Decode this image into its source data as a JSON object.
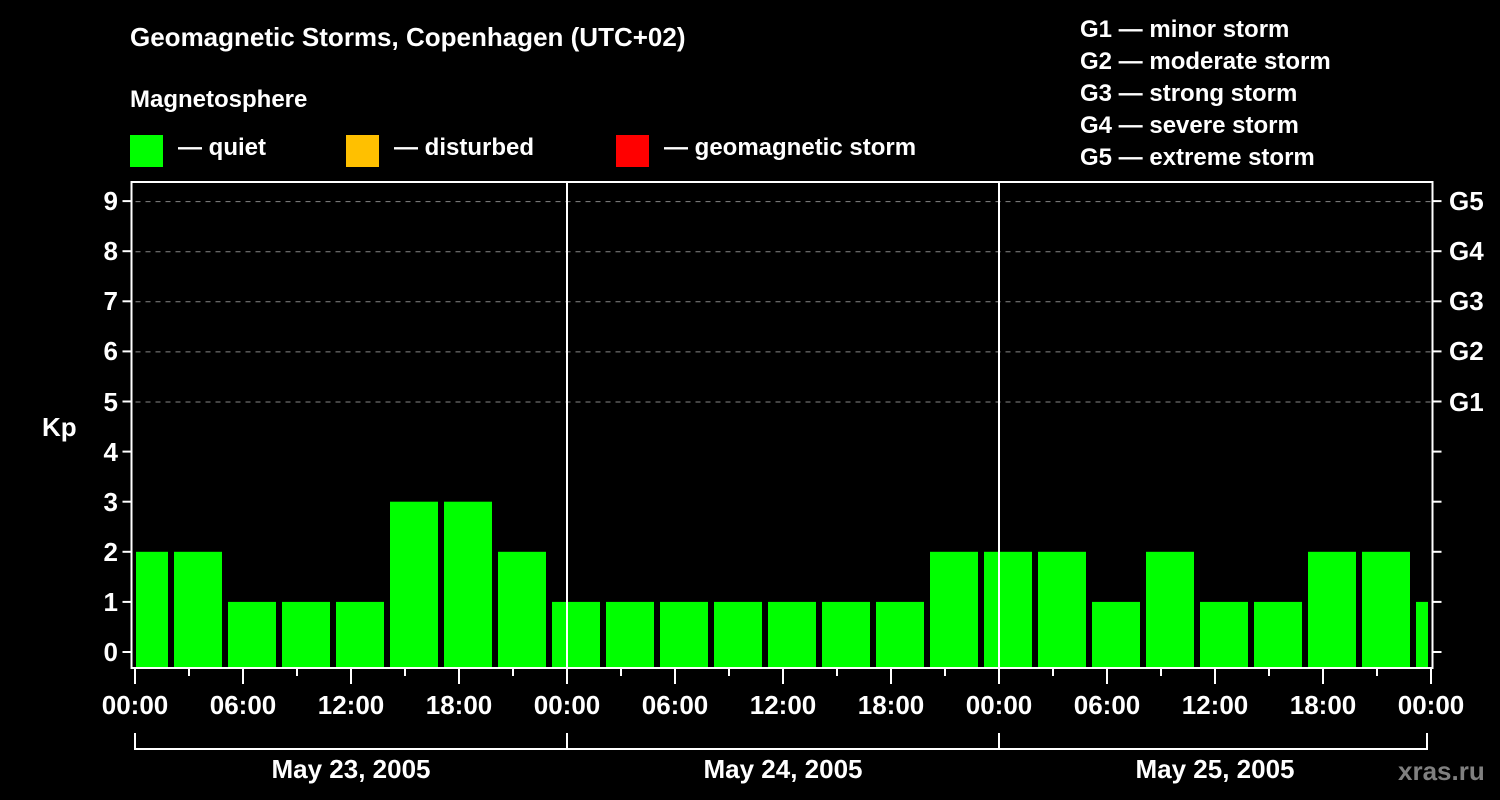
{
  "header": {
    "title": "Geomagnetic Storms, Copenhagen (UTC+02)",
    "subtitle": "Magnetosphere"
  },
  "legend": [
    {
      "label": "— quiet",
      "color": "#00ff00",
      "x": 130
    },
    {
      "label": "— disturbed",
      "color": "#ffc000",
      "x": 346
    },
    {
      "label": "— geomagnetic storm",
      "color": "#ff0000",
      "x": 616
    }
  ],
  "g_scale": [
    "G1 — minor storm",
    "G2 — moderate storm",
    "G3 — strong storm",
    "G4 — severe storm",
    "G5 — extreme storm"
  ],
  "watermark": "xras.ru",
  "chart_data": {
    "type": "bar",
    "title": "Geomagnetic Storms, Copenhagen (UTC+02)",
    "ylabel": "Kp",
    "xlabel": "",
    "ylim": [
      0,
      9
    ],
    "yticks": [
      0,
      1,
      2,
      3,
      4,
      5,
      6,
      7,
      8,
      9
    ],
    "right_axis_labels": [
      {
        "kp": 5,
        "label": "G1"
      },
      {
        "kp": 6,
        "label": "G2"
      },
      {
        "kp": 7,
        "label": "G3"
      },
      {
        "kp": 8,
        "label": "G4"
      },
      {
        "kp": 9,
        "label": "G5"
      }
    ],
    "grid": {
      "horizontal_dashed_at": [
        5,
        6,
        7,
        8,
        9
      ]
    },
    "xtick_labels": [
      "00:00",
      "06:00",
      "12:00",
      "18:00",
      "00:00",
      "06:00",
      "12:00",
      "18:00",
      "00:00",
      "06:00",
      "12:00",
      "18:00",
      "00:00"
    ],
    "days": [
      "May 23, 2005",
      "May 24, 2005",
      "May 25, 2005"
    ],
    "interval_hours": 3,
    "series": [
      {
        "name": "Kp",
        "color": "#00ff00",
        "values": [
          2,
          2,
          1,
          1,
          1,
          3,
          3,
          2,
          1,
          1,
          1,
          1,
          1,
          1,
          1,
          2,
          2,
          2,
          1,
          2,
          1,
          1,
          2,
          2,
          1
        ]
      }
    ]
  }
}
